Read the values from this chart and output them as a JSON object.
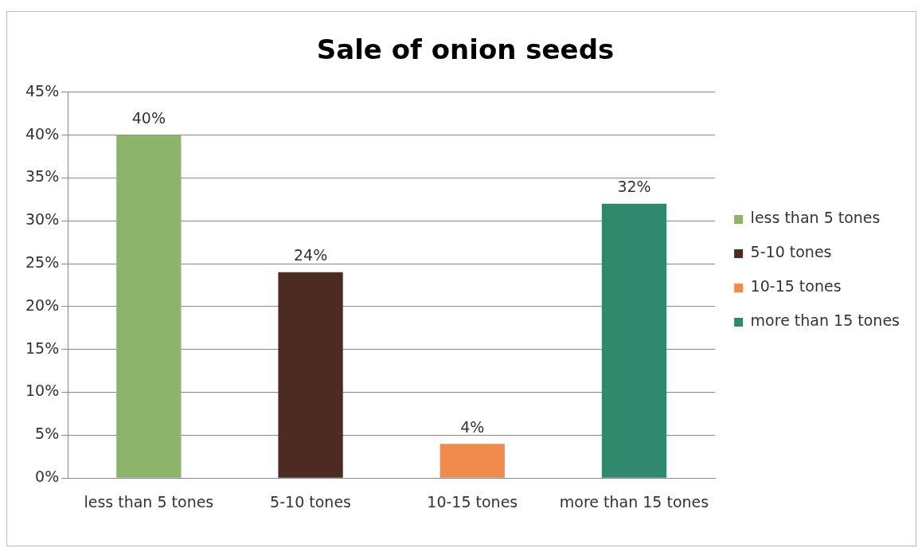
{
  "chart_data": {
    "type": "bar",
    "title": "Sale of onion seeds",
    "categories": [
      "less than 5 tones",
      "5-10 tones",
      "10-15 tones",
      "more than 15 tones"
    ],
    "series": [
      {
        "name": "less than 5 tones",
        "color": "#8cb46a",
        "values": [
          40,
          null,
          null,
          null
        ],
        "value_labels": [
          "40%",
          null,
          null,
          null
        ]
      },
      {
        "name": "5-10 tones",
        "color": "#4b2b22",
        "values": [
          null,
          24,
          null,
          null
        ],
        "value_labels": [
          null,
          "24%",
          null,
          null
        ]
      },
      {
        "name": "10-15 tones",
        "color": "#f08a4e",
        "values": [
          null,
          null,
          4,
          null
        ],
        "value_labels": [
          null,
          null,
          "4%",
          null
        ]
      },
      {
        "name": "more than 15 tones",
        "color": "#2f8a6d",
        "values": [
          null,
          null,
          null,
          32
        ],
        "value_labels": [
          null,
          null,
          null,
          "32%"
        ]
      }
    ],
    "ylim": [
      0,
      45
    ],
    "yticks": [
      {
        "value": 0,
        "label": "0%"
      },
      {
        "value": 5,
        "label": "5%"
      },
      {
        "value": 10,
        "label": "10%"
      },
      {
        "value": 15,
        "label": "15%"
      },
      {
        "value": 20,
        "label": "20%"
      },
      {
        "value": 25,
        "label": "25%"
      },
      {
        "value": 30,
        "label": "30%"
      },
      {
        "value": 35,
        "label": "35%"
      },
      {
        "value": 40,
        "label": "40%"
      },
      {
        "value": 45,
        "label": "45%"
      }
    ],
    "grid": "y",
    "legend": "right"
  }
}
